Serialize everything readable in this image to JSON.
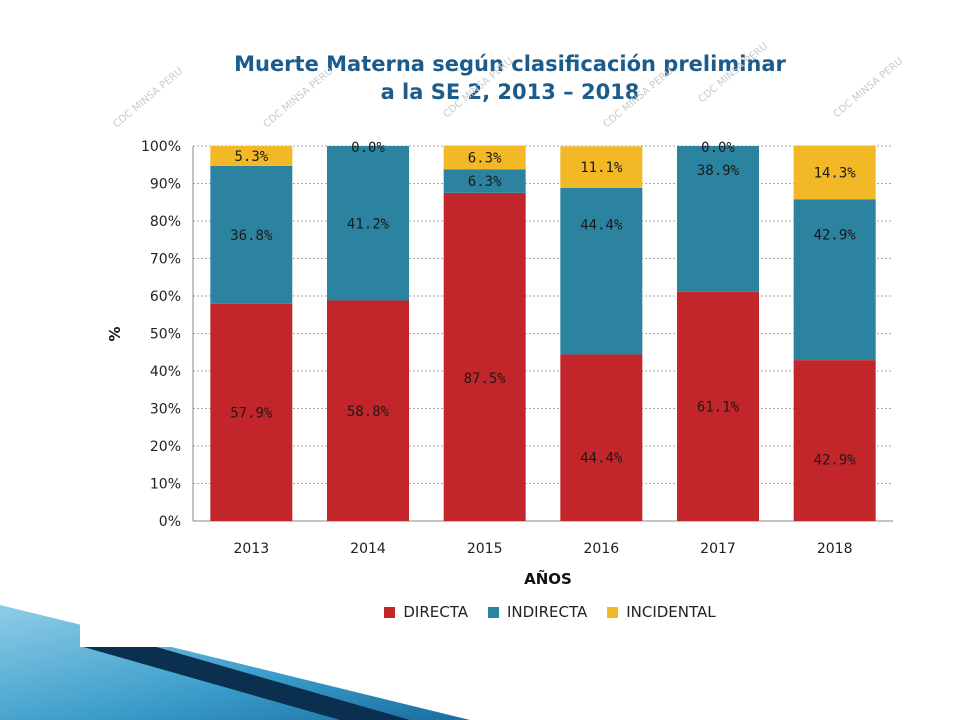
{
  "watermark": "CDC MINSA PERU",
  "colors": {
    "DIRECTA": "#c3262a",
    "INDIRECTA": "#2b839f",
    "INCIDENTAL": "#f2b825",
    "title": "#1b5c8c",
    "accent_dark": "#0a2f4f",
    "accent_light": "#8fcde8"
  },
  "chart_data": {
    "type": "bar",
    "stacked": true,
    "title": [
      "Muerte Materna según clasificación preliminar",
      "a la SE 2, 2013 – 2018"
    ],
    "xlabel": "AÑOS",
    "ylabel": "%",
    "ylim": [
      0,
      100
    ],
    "yticks": [
      "0%",
      "10%",
      "20%",
      "30%",
      "40%",
      "50%",
      "60%",
      "70%",
      "80%",
      "90%",
      "100%"
    ],
    "grid": true,
    "legend_position": "bottom",
    "categories": [
      "2013",
      "2014",
      "2015",
      "2016",
      "2017",
      "2018"
    ],
    "series": [
      {
        "name": "DIRECTA",
        "values": [
          57.9,
          58.8,
          87.5,
          44.4,
          61.1,
          42.9
        ],
        "labels": [
          "57.9%",
          "58.8%",
          "87.5%",
          "44.4%",
          "61.1%",
          "42.9%"
        ]
      },
      {
        "name": "INDIRECTA",
        "values": [
          36.8,
          41.2,
          6.3,
          44.4,
          38.9,
          42.9
        ],
        "labels": [
          "36.8%",
          "41.2%",
          "6.3%",
          "44.4%",
          "38.9%",
          "42.9%"
        ]
      },
      {
        "name": "INCIDENTAL",
        "values": [
          5.3,
          0.0,
          6.3,
          11.1,
          0.0,
          14.3
        ],
        "labels": [
          "5.3%",
          "0.0%",
          "6.3%",
          "11.1%",
          "0.0%",
          "14.3%"
        ]
      }
    ]
  }
}
